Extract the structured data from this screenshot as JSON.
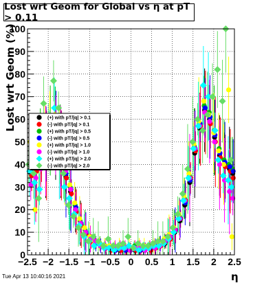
{
  "title": "Lost wrt Geom for Global vs  η at pT > 0.11",
  "timestamp": "Tue Apr 13 10:40:16 2021",
  "chart_data": {
    "type": "scatter",
    "title": "Lost wrt Geom for Global vs  η at pT > 0.11",
    "xlabel": "η",
    "ylabel": "Lost wrt Geom (%)",
    "xlim": [
      -2.5,
      2.5
    ],
    "ylim": [
      0,
      100
    ],
    "x_ticks": [
      "−2.5",
      "−2",
      "−1.5",
      "−1",
      "−0.5",
      "0",
      "0.5",
      "1",
      "1.5",
      "2",
      "2.5"
    ],
    "y_ticks": [
      "0",
      "10",
      "20",
      "30",
      "40",
      "50",
      "60",
      "70",
      "80",
      "90",
      "100"
    ],
    "grid": true,
    "legend_position": "left",
    "series": [
      {
        "name": "(+) with pT/|q| > 0.1",
        "color": "#000000",
        "marker": "circle",
        "x": [
          -2.42,
          -2.3,
          -2.18,
          -2.06,
          -1.94,
          -1.82,
          -1.7,
          -1.58,
          -1.46,
          -1.34,
          -1.22,
          -1.1,
          -0.98,
          -0.86,
          -0.74,
          -0.62,
          -0.5,
          -0.38,
          -0.26,
          -0.14,
          -0.02,
          0.1,
          0.22,
          0.34,
          0.46,
          0.58,
          0.7,
          0.82,
          0.94,
          1.06,
          1.18,
          1.3,
          1.42,
          1.54,
          1.66,
          1.78,
          1.9,
          2.02,
          2.14,
          2.26,
          2.38,
          2.46
        ],
        "y": [
          36,
          38,
          42,
          45,
          48,
          50,
          45,
          35,
          28,
          20,
          14,
          10,
          7,
          5,
          4,
          3,
          3,
          2,
          2,
          3,
          2,
          2,
          3,
          2,
          3,
          3,
          4,
          5,
          7,
          10,
          15,
          22,
          32,
          45,
          56,
          64,
          60,
          52,
          44,
          40,
          38,
          36
        ]
      },
      {
        "name": "(-) with pT/|q| > 0.1",
        "color": "#ff0000",
        "marker": "circle",
        "x": [
          -2.4,
          -2.28,
          -2.16,
          -2.04,
          -1.92,
          -1.8,
          -1.68,
          -1.56,
          -1.44,
          -1.32,
          -1.2,
          -1.08,
          -0.96,
          -0.84,
          -0.72,
          -0.6,
          -0.48,
          -0.36,
          -0.24,
          -0.12,
          0.0,
          0.12,
          0.24,
          0.36,
          0.48,
          0.6,
          0.72,
          0.84,
          0.96,
          1.08,
          1.2,
          1.32,
          1.44,
          1.56,
          1.68,
          1.8,
          1.92,
          2.04,
          2.16,
          2.28,
          2.4,
          2.47
        ],
        "y": [
          35,
          37,
          40,
          44,
          47,
          48,
          44,
          34,
          27,
          19,
          13,
          9,
          6,
          5,
          4,
          3,
          2,
          3,
          2,
          2,
          3,
          2,
          2,
          3,
          2,
          3,
          4,
          6,
          7,
          11,
          16,
          24,
          34,
          46,
          57,
          63,
          58,
          50,
          43,
          39,
          37,
          34
        ]
      },
      {
        "name": "(+) with pT/|q| > 0.5",
        "color": "#00c000",
        "marker": "circle",
        "x": [
          -2.43,
          -2.31,
          -2.19,
          -2.07,
          -1.95,
          -1.83,
          -1.71,
          -1.59,
          -1.47,
          -1.35,
          -1.23,
          -1.11,
          -0.99,
          -0.87,
          -0.75,
          -0.63,
          -0.51,
          -0.39,
          -0.27,
          -0.15,
          -0.03,
          0.09,
          0.21,
          0.33,
          0.45,
          0.57,
          0.69,
          0.81,
          0.93,
          1.05,
          1.17,
          1.29,
          1.41,
          1.53,
          1.65,
          1.77,
          1.89,
          2.01,
          2.13,
          2.25,
          2.37,
          2.45
        ],
        "y": [
          40,
          42,
          48,
          52,
          55,
          60,
          50,
          38,
          30,
          22,
          15,
          11,
          8,
          6,
          5,
          4,
          3,
          3,
          4,
          3,
          3,
          4,
          3,
          3,
          4,
          4,
          5,
          6,
          8,
          11,
          17,
          25,
          35,
          48,
          58,
          66,
          63,
          55,
          47,
          42,
          40,
          38
        ]
      },
      {
        "name": "(-) with pT/|q| > 0.5",
        "color": "#0000ff",
        "marker": "circle",
        "x": [
          -2.41,
          -2.29,
          -2.17,
          -2.05,
          -1.93,
          -1.81,
          -1.69,
          -1.57,
          -1.45,
          -1.33,
          -1.21,
          -1.09,
          -0.97,
          -0.85,
          -0.73,
          -0.61,
          -0.49,
          -0.37,
          -0.25,
          -0.13,
          -0.01,
          0.11,
          0.23,
          0.35,
          0.47,
          0.59,
          0.71,
          0.83,
          0.95,
          1.07,
          1.19,
          1.31,
          1.43,
          1.55,
          1.67,
          1.79,
          1.91,
          2.03,
          2.15,
          2.27,
          2.39,
          2.47
        ],
        "y": [
          38,
          40,
          45,
          49,
          52,
          55,
          47,
          36,
          29,
          21,
          14,
          10,
          7,
          5,
          4,
          3,
          3,
          2,
          3,
          2,
          2,
          3,
          2,
          3,
          3,
          4,
          5,
          6,
          8,
          11,
          16,
          23,
          33,
          47,
          58,
          65,
          61,
          53,
          45,
          41,
          39,
          37
        ]
      },
      {
        "name": "(+) with pT/|q| > 1.0",
        "color": "#ffff00",
        "marker": "circle",
        "x": [
          -2.44,
          -2.32,
          -2.2,
          -2.08,
          -1.96,
          -1.84,
          -1.72,
          -1.6,
          -1.48,
          -1.36,
          -1.24,
          -1.12,
          -1.0,
          -0.88,
          -0.76,
          -0.64,
          -0.52,
          -0.4,
          -0.28,
          -0.16,
          -0.04,
          0.08,
          0.2,
          0.32,
          0.44,
          0.56,
          0.68,
          0.8,
          0.92,
          1.04,
          1.16,
          1.28,
          1.4,
          1.52,
          1.64,
          1.76,
          1.88,
          2.0,
          2.12,
          2.24,
          2.36,
          2.44
        ],
        "y": [
          50,
          20,
          42,
          55,
          58,
          62,
          48,
          40,
          31,
          23,
          16,
          12,
          8,
          6,
          5,
          4,
          4,
          3,
          4,
          3,
          4,
          3,
          4,
          4,
          3,
          4,
          5,
          7,
          9,
          12,
          18,
          26,
          36,
          49,
          59,
          68,
          62,
          54,
          46,
          40,
          73,
          8
        ]
      },
      {
        "name": "(-) with pT/|q| > 1.0",
        "color": "#ff00ff",
        "marker": "circle",
        "x": [
          -2.42,
          -2.3,
          -2.18,
          -2.06,
          -1.94,
          -1.82,
          -1.7,
          -1.58,
          -1.46,
          -1.34,
          -1.22,
          -1.1,
          -0.98,
          -0.86,
          -0.74,
          -0.62,
          -0.5,
          -0.38,
          -0.26,
          -0.14,
          -0.02,
          0.1,
          0.22,
          0.34,
          0.46,
          0.58,
          0.7,
          0.82,
          0.94,
          1.06,
          1.18,
          1.3,
          1.42,
          1.54,
          1.66,
          1.78,
          1.9,
          2.02,
          2.14,
          2.26,
          2.38,
          2.46
        ],
        "y": [
          31,
          34,
          38,
          46,
          50,
          53,
          46,
          37,
          29,
          20,
          14,
          10,
          7,
          6,
          4,
          3,
          3,
          3,
          3,
          3,
          2,
          3,
          3,
          2,
          3,
          3,
          4,
          6,
          8,
          11,
          16,
          24,
          34,
          47,
          57,
          63,
          59,
          50,
          40,
          33,
          28,
          25
        ]
      },
      {
        "name": "(+) with pT/|q| > 2.0",
        "color": "#00ffff",
        "marker": "diamond",
        "x": [
          -2.45,
          -2.33,
          -2.21,
          -2.09,
          -1.97,
          -1.85,
          -1.73,
          -1.61,
          -1.49,
          -1.37,
          -1.25,
          -1.13,
          -1.01,
          -0.89,
          -0.77,
          -0.65,
          -0.53,
          -0.41,
          -0.29,
          -0.17,
          -0.05,
          0.07,
          0.19,
          0.31,
          0.43,
          0.55,
          0.67,
          0.79,
          0.91,
          1.03,
          1.15,
          1.27,
          1.39,
          1.51,
          1.63,
          1.75,
          1.87,
          2.03,
          2.11,
          2.23,
          2.35,
          2.43
        ],
        "y": [
          37,
          32,
          29,
          48,
          53,
          65,
          40,
          30,
          25,
          18,
          13,
          8,
          6,
          4,
          5,
          3,
          3,
          2,
          3,
          3,
          4,
          3,
          2,
          3,
          3,
          4,
          4,
          5,
          7,
          10,
          16,
          24,
          34,
          47,
          57,
          75,
          70,
          55,
          42,
          35,
          33,
          30
        ]
      },
      {
        "name": "(-) with pT/|q| > 2.0",
        "color": "#66dd66",
        "marker": "diamond",
        "x": [
          -2.47,
          -2.35,
          -2.23,
          -2.11,
          -1.99,
          -1.87,
          -1.75,
          -1.63,
          -1.51,
          -1.39,
          -1.27,
          -1.15,
          -1.03,
          -0.91,
          -0.79,
          -0.67,
          -0.55,
          -0.43,
          -0.31,
          -0.19,
          -0.07,
          0.05,
          0.17,
          0.29,
          0.41,
          0.53,
          0.65,
          0.77,
          0.89,
          1.01,
          1.13,
          1.25,
          1.37,
          1.49,
          1.61,
          1.73,
          1.85,
          1.97,
          2.09,
          2.21,
          2.29,
          2.41
        ],
        "y": [
          40,
          36,
          25,
          67,
          60,
          77,
          65,
          36,
          22,
          17,
          12,
          9,
          6,
          8,
          6,
          4,
          7,
          4,
          4,
          5,
          8,
          3,
          5,
          4,
          4,
          5,
          6,
          6,
          8,
          12,
          18,
          27,
          38,
          50,
          60,
          55,
          62,
          70,
          82,
          68,
          100,
          42
        ]
      }
    ]
  }
}
